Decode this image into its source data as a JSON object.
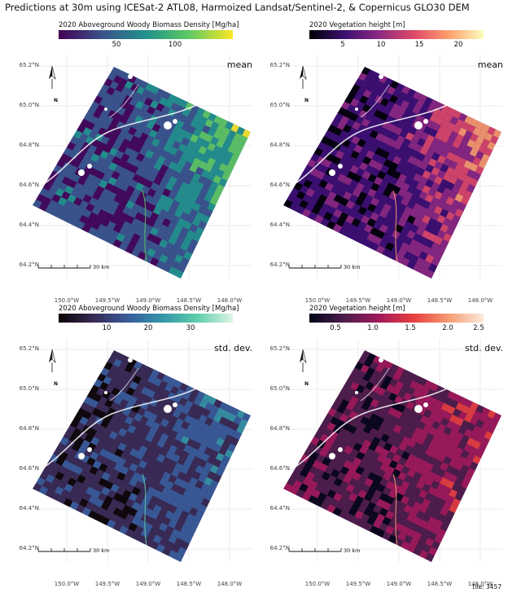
{
  "title": "Predictions at 30m using ICESat-2 ATL08, Harmoized Landsat/Sentinel-2, & Copernicus GLO30 DEM",
  "footer": "tile: 3457",
  "lat_labels": [
    "65.2°N",
    "65.0°N",
    "64.8°N",
    "64.6°N",
    "64.4°N",
    "64.2°N"
  ],
  "lon_labels": [
    "150.0°W",
    "149.5°W",
    "149.0°W",
    "148.5°W",
    "148.0°W"
  ],
  "north_label": "N",
  "scale_label": "30 km",
  "panels": [
    {
      "legend_title": "2020 Aboveground Woody Biomass Density [Mg/ha]",
      "ticks": [
        "50",
        "100"
      ],
      "stat": "mean",
      "colormap": "viridis",
      "colors": [
        "#440154",
        "#3b528b",
        "#21918c",
        "#5ec962",
        "#fde725"
      ]
    },
    {
      "legend_title": "2020 Vegetation height [m]",
      "ticks": [
        "5",
        "10",
        "15",
        "20"
      ],
      "stat": "mean",
      "colormap": "magma",
      "colors": [
        "#000004",
        "#3b0f70",
        "#8c2981",
        "#de4968",
        "#fe9f6d",
        "#fcfdbf"
      ]
    },
    {
      "legend_title": "2020 Aboveground Woody Biomass Density [Mg/ha]",
      "ticks": [
        "10",
        "20",
        "30"
      ],
      "stat": "std. dev.",
      "colormap": "mako",
      "colors": [
        "#0b0405",
        "#382a54",
        "#395d9c",
        "#3497a9",
        "#60ceac",
        "#def5e5"
      ]
    },
    {
      "legend_title": "2020 Vegetation height [m]",
      "ticks": [
        "0.5",
        "1.0",
        "1.5",
        "2.0",
        "2.5"
      ],
      "stat": "std. dev.",
      "colormap": "rocket",
      "colors": [
        "#03051a",
        "#4c1d4b",
        "#a11a5b",
        "#e83f3f",
        "#f69c73",
        "#faebdd"
      ]
    }
  ]
}
